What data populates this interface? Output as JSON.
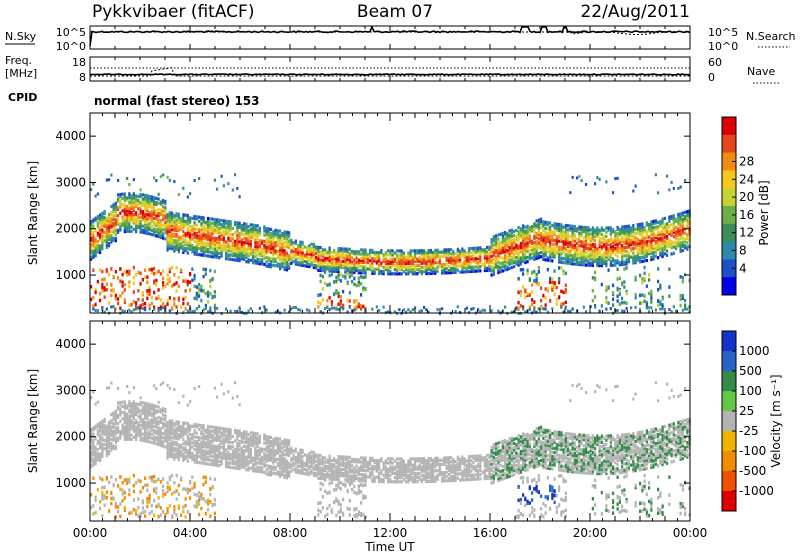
{
  "header": {
    "station": "Pykkvibaer (fitACF)",
    "beam": "Beam 07",
    "date": "22/Aug/2011"
  },
  "time_axis": {
    "label": "Time UT",
    "range_hours": [
      0,
      24
    ],
    "ticks": [
      "00:00",
      "04:00",
      "08:00",
      "12:00",
      "16:00",
      "20:00",
      "00:00"
    ]
  },
  "nsky_panel": {
    "left_label": "N.Sky",
    "right_label": "N.Search",
    "left_ticks": [
      "10^5",
      "10^0"
    ],
    "right_ticks": [
      "10^5",
      "10^0"
    ],
    "trace_color": "#000000"
  },
  "freq_panel": {
    "left_label_line1": "Freq.",
    "left_label_line2": "[MHz]",
    "right_label": "Nave",
    "left_ticks": [
      "18",
      "8"
    ],
    "right_ticks": [
      "60",
      "0"
    ],
    "cpid_label": "CPID",
    "cpid_text": "normal (fast stereo) 153"
  },
  "chart_data": [
    {
      "type": "heatmap",
      "title": "",
      "xlabel": "Time UT",
      "ylabel": "Slant Range [km]",
      "xlim": [
        0,
        24
      ],
      "ylim": [
        180,
        4500
      ],
      "yticks": [
        1000,
        2000,
        3000,
        4000
      ],
      "colorbar": {
        "label": "Power [dB]",
        "ticks": [
          "4",
          "8",
          "12",
          "16",
          "20",
          "24",
          "28"
        ],
        "colors": [
          "#0000e6",
          "#1e50c8",
          "#2d8aa8",
          "#3c8c58",
          "#6ab046",
          "#c8d232",
          "#f5c81e",
          "#f08c14",
          "#e6461e",
          "#dc0000"
        ]
      },
      "features": [
        {
          "start_h": 0.0,
          "end_h": 4.0,
          "range_km": 1000,
          "value": 26
        },
        {
          "start_h": 0.0,
          "end_h": 8.0,
          "range_km": 2000,
          "value": 16
        },
        {
          "start_h": 8.0,
          "end_h": 16.0,
          "range_km": 1400,
          "value": 24
        },
        {
          "start_h": 9.0,
          "end_h": 11.0,
          "range_km": 450,
          "value": 22
        },
        {
          "start_h": 16.0,
          "end_h": 24.0,
          "range_km": 1900,
          "value": 18
        },
        {
          "start_h": 17.0,
          "end_h": 19.0,
          "range_km": 600,
          "value": 26
        }
      ]
    },
    {
      "type": "heatmap",
      "title": "",
      "xlabel": "Time UT",
      "ylabel": "Slant Range [km]",
      "xlim": [
        0,
        24
      ],
      "ylim": [
        180,
        4500
      ],
      "yticks": [
        1000,
        2000,
        3000,
        4000
      ],
      "colorbar": {
        "label": "Velocity [m s⁻¹]",
        "ticks": [
          "1000",
          "500",
          "100",
          "25",
          "-25",
          "-100",
          "-500",
          "-1000"
        ],
        "colors": [
          "#1432c8",
          "#2864c8",
          "#328c46",
          "#64c846",
          "#b4b4b4",
          "#f0b400",
          "#f08c00",
          "#f05000",
          "#dc0000"
        ]
      },
      "features": [
        {
          "start_h": 0.0,
          "end_h": 16.0,
          "range_km": 1700,
          "value": 0
        },
        {
          "start_h": 0.0,
          "end_h": 5.0,
          "range_km": 700,
          "value": -100
        },
        {
          "start_h": 16.0,
          "end_h": 24.0,
          "range_km": 1800,
          "value": 100
        },
        {
          "start_h": 17.0,
          "end_h": 18.5,
          "range_km": 800,
          "value": 500
        }
      ]
    }
  ]
}
